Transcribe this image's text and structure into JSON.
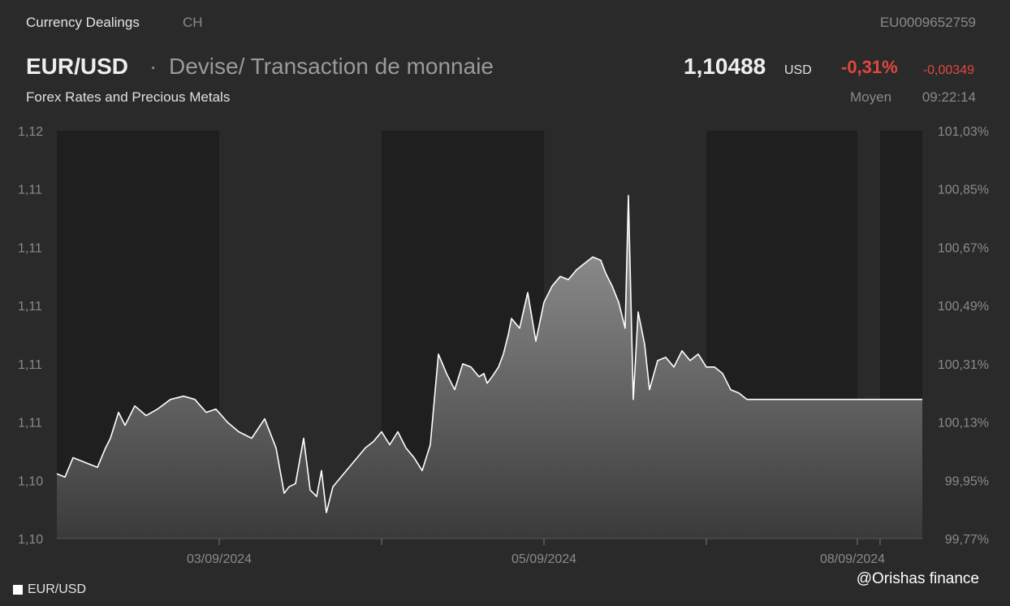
{
  "header": {
    "section": "Currency Dealings",
    "country": "CH",
    "isin": "EU0009652759",
    "pair": "EUR/USD",
    "separator": "·",
    "description": "Devise/ Transaction de monnaie",
    "subtitle": "Forex Rates and Precious Metals",
    "price": "1,10488",
    "currency": "USD",
    "change_pct": "-0,31%",
    "change_abs": "-0,00349",
    "price_type": "Moyen",
    "time": "09:22:14"
  },
  "colors": {
    "background": "#2a2a2a",
    "weekend_band": "#1f1f1f",
    "line": "#ffffff",
    "negative": "#e0483e"
  },
  "chart_data": {
    "type": "area",
    "series": [
      {
        "name": "EUR/USD"
      }
    ],
    "y_left_ticks": [
      "1,12",
      "1,11",
      "1,11",
      "1,11",
      "1,11",
      "1,11",
      "1,10",
      "1,10"
    ],
    "y_right_ticks": [
      "101,03%",
      "100,85%",
      "100,67%",
      "100,49%",
      "100,31%",
      "100,13%",
      "99,95%",
      "99,77%"
    ],
    "y_right_range": [
      99.77,
      101.03
    ],
    "x_tick_labels": [
      {
        "label": "03/09/2024",
        "t": 1.0
      },
      {
        "label": "05/09/2024",
        "t": 3.0
      },
      {
        "label": "08/09/2024",
        "t": 4.9
      }
    ],
    "x_tick_marks": [
      1.0,
      2.0,
      3.0,
      4.0,
      4.93,
      5.07
    ],
    "x_range": [
      0.0,
      5.33
    ],
    "weekend_bands": [
      [
        0.0,
        1.0
      ],
      [
        2.0,
        3.0
      ],
      [
        4.0,
        4.93
      ],
      [
        5.07,
        5.33
      ]
    ],
    "x": [
      0.0,
      0.05,
      0.1,
      0.15,
      0.2,
      0.25,
      0.3,
      0.33,
      0.38,
      0.42,
      0.48,
      0.55,
      0.62,
      0.7,
      0.78,
      0.85,
      0.92,
      0.98,
      1.05,
      1.12,
      1.2,
      1.28,
      1.35,
      1.4,
      1.43,
      1.47,
      1.52,
      1.56,
      1.6,
      1.63,
      1.66,
      1.7,
      1.75,
      1.8,
      1.85,
      1.9,
      1.95,
      2.0,
      2.05,
      2.1,
      2.15,
      2.2,
      2.25,
      2.3,
      2.35,
      2.4,
      2.45,
      2.5,
      2.55,
      2.6,
      2.63,
      2.65,
      2.68,
      2.72,
      2.75,
      2.78,
      2.8,
      2.85,
      2.9,
      2.95,
      3.0,
      3.05,
      3.1,
      3.15,
      3.2,
      3.25,
      3.3,
      3.35,
      3.38,
      3.42,
      3.46,
      3.5,
      3.52,
      3.55,
      3.58,
      3.62,
      3.65,
      3.7,
      3.75,
      3.8,
      3.85,
      3.9,
      3.95,
      4.0,
      4.05,
      4.1,
      4.15,
      4.2,
      4.25,
      4.28,
      4.3,
      4.33,
      4.35,
      4.38,
      4.4,
      4.42,
      4.45,
      4.48,
      4.5,
      4.55,
      4.6,
      4.65,
      4.7,
      4.75,
      4.8,
      4.85,
      4.9,
      4.95,
      5.0,
      5.05,
      5.1,
      5.15,
      5.2,
      5.25,
      5.3,
      5.33
    ],
    "y": [
      99.97,
      99.96,
      100.02,
      100.01,
      100.0,
      99.99,
      100.05,
      100.08,
      100.16,
      100.12,
      100.18,
      100.15,
      100.17,
      100.2,
      100.21,
      100.2,
      100.16,
      100.17,
      100.13,
      100.1,
      100.08,
      100.14,
      100.05,
      99.91,
      99.93,
      99.94,
      100.08,
      99.92,
      99.9,
      99.98,
      99.85,
      99.93,
      99.96,
      99.99,
      100.02,
      100.05,
      100.07,
      100.1,
      100.06,
      100.1,
      100.05,
      100.02,
      99.98,
      100.06,
      100.34,
      100.28,
      100.23,
      100.31,
      100.3,
      100.27,
      100.28,
      100.25,
      100.27,
      100.3,
      100.34,
      100.4,
      100.45,
      100.42,
      100.53,
      100.38,
      100.5,
      100.55,
      100.58,
      100.57,
      100.6,
      100.62,
      100.64,
      100.63,
      100.59,
      100.55,
      100.5,
      100.42,
      100.83,
      100.2,
      100.47,
      100.37,
      100.23,
      100.32,
      100.33,
      100.3,
      100.35,
      100.32,
      100.34,
      100.3,
      100.3,
      100.28,
      100.23,
      100.22,
      100.2,
      100.2,
      100.2,
      100.2,
      100.2,
      100.2,
      100.2,
      100.2,
      100.2,
      100.2,
      100.2,
      100.2,
      100.2,
      100.2,
      100.2,
      100.2,
      100.2,
      100.2,
      100.2,
      100.2,
      100.2,
      100.2,
      100.2,
      100.2,
      100.2,
      100.2,
      100.2,
      100.2
    ]
  },
  "legend": {
    "label": "EUR/USD"
  },
  "watermark": "@Orishas finance"
}
